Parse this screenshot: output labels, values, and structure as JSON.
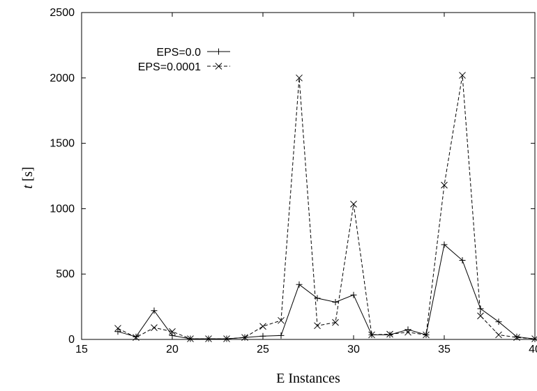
{
  "chart_data": {
    "type": "line",
    "xlabel": "E Instances",
    "ylabel_italic": "t",
    "ylabel_unit": "[s]",
    "xlim": [
      15,
      40
    ],
    "ylim": [
      0,
      2500
    ],
    "xticks": [
      15,
      20,
      25,
      30,
      35,
      40
    ],
    "yticks": [
      0,
      500,
      1000,
      1500,
      2000,
      2500
    ],
    "grid": false,
    "legend_position": "top-left",
    "series": [
      {
        "name": "EPS=0.0",
        "marker": "plus",
        "line_style": "solid",
        "color": "#000000",
        "x": [
          17,
          18,
          19,
          20,
          21,
          22,
          23,
          24,
          25,
          26,
          27,
          28,
          29,
          30,
          31,
          32,
          33,
          34,
          35,
          36,
          37,
          38,
          39,
          40
        ],
        "y": [
          60,
          20,
          220,
          30,
          5,
          5,
          5,
          15,
          25,
          30,
          420,
          315,
          285,
          340,
          35,
          35,
          75,
          35,
          725,
          605,
          235,
          135,
          20,
          3
        ]
      },
      {
        "name": "EPS=0.0001",
        "marker": "cross",
        "line_style": "dashed",
        "color": "#000000",
        "x": [
          17,
          18,
          19,
          20,
          21,
          22,
          23,
          24,
          25,
          26,
          27,
          28,
          29,
          30,
          31,
          32,
          33,
          34,
          35,
          36,
          37,
          38,
          39,
          40
        ],
        "y": [
          85,
          15,
          90,
          60,
          5,
          5,
          5,
          15,
          100,
          145,
          2000,
          105,
          130,
          1035,
          35,
          40,
          55,
          35,
          1180,
          2020,
          180,
          35,
          15,
          5
        ]
      }
    ]
  }
}
